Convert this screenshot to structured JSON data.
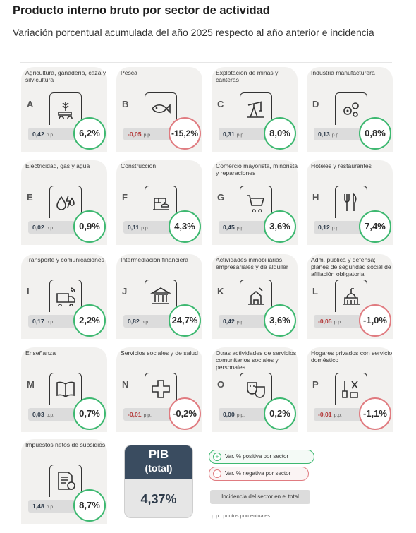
{
  "title": "Producto interno bruto por sector de actividad",
  "subtitle": "Variación porcentual acumulada del año 2025 respecto al año anterior e incidencia",
  "pp_unit": "p.p.",
  "colors": {
    "positive": "#3db870",
    "negative": "#e07b80",
    "pib_header": "#3a4c60",
    "card_bg": "#f2f1ef"
  },
  "sectors": [
    {
      "letter": "A",
      "name": "Agricultura, ganadería, caza y silvicultura",
      "incidence": "0,42",
      "variation": "6,2%",
      "negative": false,
      "icon": "tractor-icon"
    },
    {
      "letter": "B",
      "name": "Pesca",
      "incidence": "-0,05",
      "variation": "-15,2%",
      "negative": true,
      "icon": "fish-icon"
    },
    {
      "letter": "C",
      "name": "Explotación de minas y canteras",
      "incidence": "0,31",
      "variation": "8,0%",
      "negative": false,
      "icon": "oil-pump-icon"
    },
    {
      "letter": "D",
      "name": "Industria manufacturera",
      "incidence": "0,13",
      "variation": "0,8%",
      "negative": false,
      "icon": "gears-icon"
    },
    {
      "letter": "E",
      "name": "Electricidad, gas y agua",
      "incidence": "0,02",
      "variation": "0,9%",
      "negative": false,
      "icon": "utilities-icon"
    },
    {
      "letter": "F",
      "name": "Construcción",
      "incidence": "0,11",
      "variation": "4,3%",
      "negative": false,
      "icon": "construction-icon"
    },
    {
      "letter": "G",
      "name": "Comercio mayorista, minorista y reparaciones",
      "incidence": "0,45",
      "variation": "3,6%",
      "negative": false,
      "icon": "cart-icon"
    },
    {
      "letter": "H",
      "name": "Hoteles y restaurantes",
      "incidence": "0,12",
      "variation": "7,4%",
      "negative": false,
      "icon": "restaurant-icon"
    },
    {
      "letter": "I",
      "name": "Transporte y comunicaciones",
      "incidence": "0,17",
      "variation": "2,2%",
      "negative": false,
      "icon": "transport-icon"
    },
    {
      "letter": "J",
      "name": "Intermediación financiera",
      "incidence": "0,82",
      "variation": "24,7%",
      "negative": false,
      "icon": "bank-icon"
    },
    {
      "letter": "K",
      "name": "Actividades inmobiliarias, empresariales y de alquiler",
      "incidence": "0,42",
      "variation": "3,6%",
      "negative": false,
      "icon": "real-estate-icon"
    },
    {
      "letter": "L",
      "name": "Adm. pública y defensa; planes de seguridad social de afiliación obligatoria",
      "incidence": "-0,05",
      "variation": "-1,0%",
      "negative": true,
      "icon": "capitol-icon"
    },
    {
      "letter": "M",
      "name": "Enseñanza",
      "incidence": "0,03",
      "variation": "0,7%",
      "negative": false,
      "icon": "book-icon"
    },
    {
      "letter": "N",
      "name": "Servicios sociales y de salud",
      "incidence": "-0,01",
      "variation": "-0,2%",
      "negative": true,
      "icon": "health-cross-icon"
    },
    {
      "letter": "O",
      "name": "Otras actividades de servicios comunitarios sociales y personales",
      "incidence": "0,00",
      "variation": "0,2%",
      "negative": false,
      "icon": "theater-masks-icon"
    },
    {
      "letter": "P",
      "name": "Hogares privados con servicio doméstico",
      "incidence": "-0,01",
      "variation": "-1,1%",
      "negative": true,
      "icon": "cleaning-tools-icon"
    },
    {
      "letter": "",
      "name": "Impuestos netos de subsidios",
      "incidence": "1,48",
      "variation": "8,7%",
      "negative": false,
      "icon": "tax-document-icon"
    }
  ],
  "pib": {
    "line1": "PIB",
    "line2": "(total)",
    "value": "4,37%"
  },
  "legend": {
    "positive_symbol": "+",
    "positive_label": "Var. % positiva por sector",
    "negative_symbol": "-",
    "negative_label": "Var. % negativa por sector",
    "incidence_label": "Incidencia del sector en el total",
    "note": "p.p.: puntos porcentuales"
  }
}
